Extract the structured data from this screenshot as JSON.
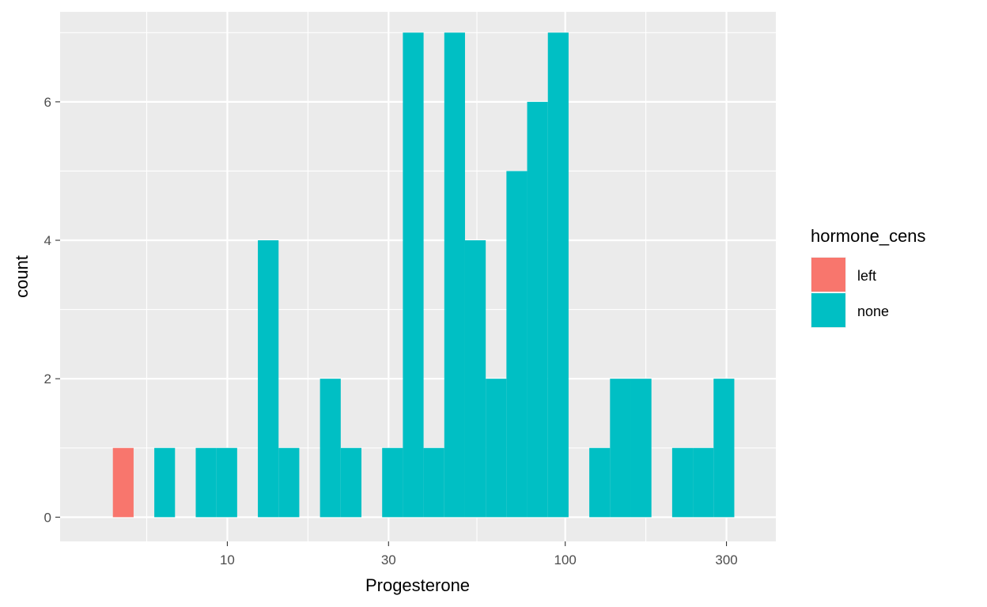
{
  "chart_data": {
    "type": "bar",
    "x_scale": "log10",
    "xlabel": "Progesterone",
    "ylabel": "count",
    "xlim": [
      3.2,
      420
    ],
    "ylim": [
      -0.35,
      7.3
    ],
    "x_ticks": [
      10,
      30,
      100,
      300
    ],
    "x_tick_labels": [
      "10",
      "30",
      "100",
      "300"
    ],
    "y_ticks": [
      0,
      2,
      4,
      6
    ],
    "y_tick_labels": [
      "0",
      "2",
      "4",
      "6"
    ],
    "grid": true,
    "legend": {
      "title": "hormone_cens",
      "position": "right",
      "entries": [
        {
          "label": "left",
          "color": "#F8766D"
        },
        {
          "label": "none",
          "color": "#00BFC4"
        }
      ]
    },
    "bin_edges_log10": [
      0.6,
      0.6613,
      0.7226,
      0.7839,
      0.8452,
      0.9065,
      0.9678,
      1.0291,
      1.0904,
      1.1517,
      1.213,
      1.2743,
      1.3356,
      1.3969,
      1.4582,
      1.5195,
      1.5808,
      1.6421,
      1.7034,
      1.7647,
      1.826,
      1.8873,
      1.9486,
      2.0099,
      2.0712,
      2.1325,
      2.1938,
      2.2551,
      2.3164,
      2.3777,
      2.439,
      2.5003
    ],
    "series": [
      {
        "name": "left",
        "color": "#F8766D",
        "values": [
          0,
          1,
          0,
          0,
          0,
          0,
          0,
          0,
          0,
          0,
          0,
          0,
          0,
          0,
          0,
          0,
          0,
          0,
          0,
          0,
          0,
          0,
          0,
          0,
          0,
          0,
          0,
          0,
          0,
          0,
          0
        ]
      },
      {
        "name": "none",
        "color": "#00BFC4",
        "values": [
          0,
          0,
          0,
          1,
          0,
          1,
          1,
          0,
          4,
          1,
          0,
          2,
          1,
          0,
          1,
          7,
          1,
          7,
          4,
          2,
          5,
          6,
          7,
          0,
          1,
          2,
          2,
          0,
          1,
          1,
          2
        ]
      }
    ]
  }
}
